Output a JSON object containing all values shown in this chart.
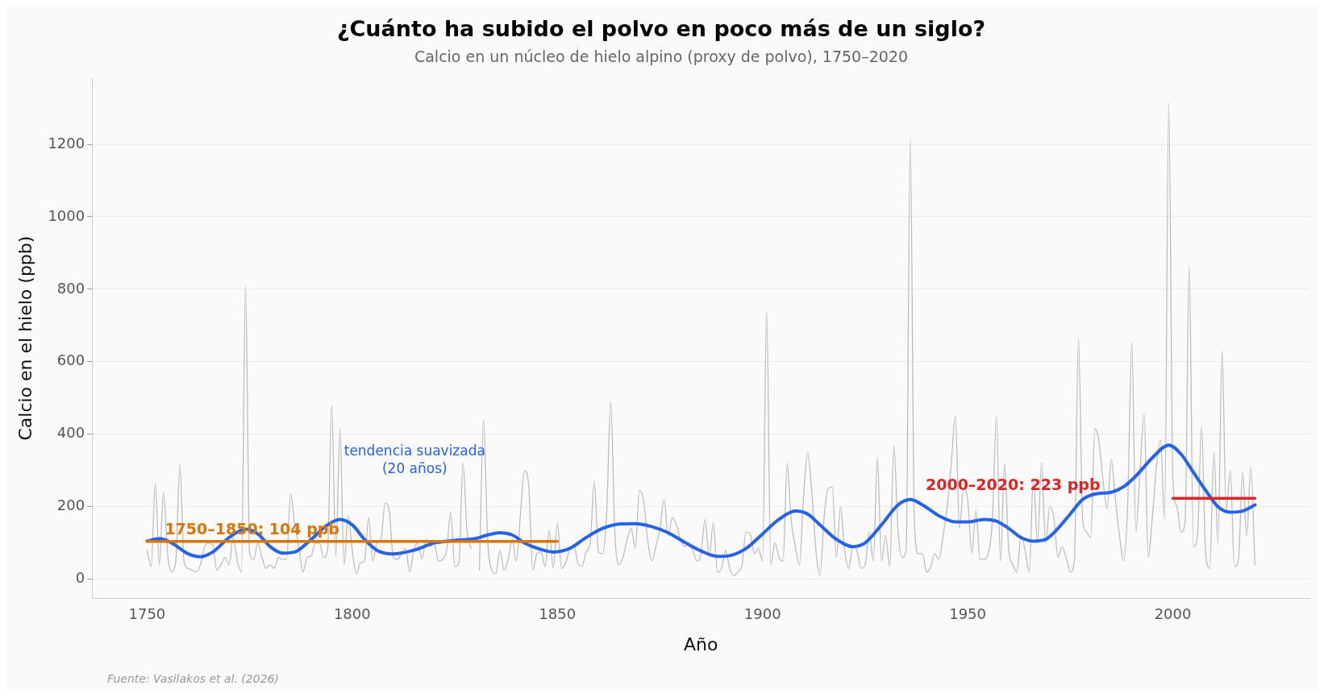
{
  "chart_data": {
    "type": "line",
    "title": "¿Cuánto ha subido el polvo en poco más de un siglo?",
    "subtitle": "Calcio en un núcleo de hielo alpino (proxy de polvo), 1750–2020",
    "xlabel": "Año",
    "ylabel": "Calcio en el hielo (ppb)",
    "annotations": [
      "Fuente: Vasilakos et al. (2026)"
    ],
    "xlim": [
      1736.6,
      2033.3
    ],
    "xticks": [
      1750,
      1800,
      1850,
      1900,
      1950,
      2000
    ],
    "ylim": [
      -52,
      1382
    ],
    "yticks": [
      0,
      200,
      400,
      600,
      800,
      1000,
      1200
    ],
    "grid": "y",
    "legend": false,
    "marker": "none",
    "series": [
      {
        "color": "#bdbdbd",
        "x": [
          1750,
          1751,
          1752,
          1753,
          1754,
          1755,
          1756,
          1757,
          1758,
          1759,
          1760,
          1761,
          1762,
          1763,
          1764,
          1765,
          1766,
          1767,
          1768,
          1769,
          1770,
          1771,
          1772,
          1773,
          1774,
          1775,
          1776,
          1777,
          1778,
          1779,
          1780,
          1781,
          1782,
          1783,
          1784,
          1785,
          1786,
          1787,
          1788,
          1789,
          1790,
          1791,
          1792,
          1793,
          1794,
          1795,
          1796,
          1797,
          1798,
          1799,
          1800,
          1801,
          1802,
          1803,
          1804,
          1805,
          1806,
          1807,
          1808,
          1809,
          1810,
          1811,
          1812,
          1813,
          1814,
          1815,
          1816,
          1817,
          1818,
          1819,
          1820,
          1821,
          1822,
          1823,
          1824,
          1825,
          1826,
          1827,
          1828,
          1829,
          1830,
          1831,
          1832,
          1833,
          1834,
          1835,
          1836,
          1837,
          1838,
          1839,
          1840,
          1841,
          1842,
          1843,
          1844,
          1845,
          1846,
          1847,
          1848,
          1849,
          1850,
          1851,
          1852,
          1853,
          1854,
          1855,
          1856,
          1857,
          1858,
          1859,
          1860,
          1861,
          1862,
          1863,
          1864,
          1865,
          1866,
          1867,
          1868,
          1869,
          1870,
          1871,
          1872,
          1873,
          1874,
          1875,
          1876,
          1877,
          1878,
          1879,
          1880,
          1881,
          1882,
          1883,
          1884,
          1885,
          1886,
          1887,
          1888,
          1889,
          1890,
          1891,
          1892,
          1893,
          1894,
          1895,
          1896,
          1897,
          1898,
          1899,
          1900,
          1901,
          1902,
          1903,
          1904,
          1905,
          1906,
          1907,
          1908,
          1909,
          1910,
          1911,
          1912,
          1913,
          1914,
          1915,
          1916,
          1917,
          1918,
          1919,
          1920,
          1921,
          1922,
          1923,
          1924,
          1925,
          1926,
          1927,
          1928,
          1929,
          1930,
          1931,
          1932,
          1933,
          1934,
          1935,
          1936,
          1937,
          1938,
          1939,
          1940,
          1941,
          1942,
          1943,
          1944,
          1945,
          1946,
          1947,
          1948,
          1949,
          1950,
          1951,
          1952,
          1953,
          1954,
          1955,
          1956,
          1957,
          1958,
          1959,
          1960,
          1961,
          1962,
          1963,
          1964,
          1965,
          1966,
          1967,
          1968,
          1969,
          1970,
          1971,
          1972,
          1973,
          1974,
          1975,
          1976,
          1977,
          1978,
          1979,
          1980,
          1981,
          1982,
          1983,
          1984,
          1985,
          1986,
          1987,
          1988,
          1989,
          1990,
          1991,
          1992,
          1993,
          1994,
          1995,
          1996,
          1997,
          1998,
          1999,
          2000,
          2001,
          2002,
          2003,
          2004,
          2005,
          2006,
          2007,
          2008,
          2009,
          2010,
          2011,
          2012,
          2013,
          2014,
          2015,
          2016,
          2017,
          2018,
          2019,
          2020
        ],
        "values": [
          80,
          35,
          265,
          40,
          240,
          70,
          20,
          50,
          315,
          50,
          30,
          25,
          20,
          40,
          90,
          100,
          95,
          25,
          40,
          60,
          40,
          115,
          50,
          20,
          810,
          70,
          55,
          100,
          60,
          30,
          40,
          30,
          60,
          55,
          55,
          235,
          150,
          90,
          20,
          60,
          65,
          100,
          100,
          60,
          80,
          480,
          60,
          415,
          40,
          175,
          80,
          15,
          45,
          50,
          170,
          50,
          100,
          110,
          210,
          190,
          60,
          55,
          70,
          85,
          20,
          80,
          100,
          55,
          110,
          90,
          100,
          50,
          55,
          80,
          185,
          35,
          45,
          320,
          130,
          85,
          null,
          25,
          440,
          110,
          25,
          15,
          80,
          25,
          55,
          110,
          50,
          180,
          300,
          260,
          25,
          70,
          75,
          35,
          135,
          30,
          155,
          30,
          45,
          80,
          95,
          45,
          35,
          75,
          100,
          270,
          75,
          70,
          180,
          490,
          130,
          40,
          60,
          110,
          140,
          85,
          245,
          220,
          110,
          50,
          90,
          140,
          220,
          120,
          170,
          150,
          110,
          90,
          100,
          80,
          50,
          70,
          165,
          60,
          155,
          20,
          30,
          80,
          30,
          10,
          20,
          40,
          130,
          125,
          70,
          85,
          50,
          740,
          40,
          100,
          60,
          50,
          320,
          160,
          90,
          40,
          230,
          350,
          240,
          80,
          10,
          170,
          250,
          255,
          60,
          200,
          80,
          30,
          90,
          80,
          30,
          40,
          130,
          50,
          335,
          50,
          120,
          35,
          370,
          140,
          60,
          80,
          1215,
          160,
          70,
          70,
          20,
          35,
          70,
          55,
          120,
          200,
          320,
          450,
          140,
          250,
          220,
          70,
          190,
          55,
          55,
          70,
          160,
          450,
          50,
          320,
          80,
          40,
          20,
          120,
          80,
          20,
          280,
          100,
          320,
          100,
          200,
          170,
          60,
          90,
          60,
          20,
          50,
          665,
          170,
          130,
          115,
          415,
          380,
          270,
          195,
          330,
          220,
          120,
          50,
          210,
          655,
          130,
          300,
          455,
          60,
          170,
          310,
          385,
          165,
          1315,
          280,
          200,
          130,
          160,
          865,
          90,
          120,
          420,
          70,
          30,
          350,
          100,
          630,
          190,
          300,
          35,
          55,
          295,
          120,
          310,
          40
        ]
      },
      {
        "name": "tendencia suavizada (20 años)",
        "color": "#2563eb",
        "x": [
          1750,
          1753,
          1756,
          1760,
          1763,
          1766,
          1770,
          1774,
          1777,
          1780,
          1783,
          1786,
          1790,
          1794,
          1797,
          1800,
          1803,
          1806,
          1810,
          1815,
          1820,
          1825,
          1830,
          1833,
          1836,
          1839,
          1842,
          1846,
          1849,
          1853,
          1857,
          1861,
          1865,
          1869,
          1873,
          1877,
          1881,
          1885,
          1889,
          1892,
          1896,
          1900,
          1904,
          1908,
          1911,
          1914,
          1918,
          1922,
          1925,
          1929,
          1933,
          1936,
          1939,
          1943,
          1947,
          1950,
          1954,
          1957,
          1960,
          1963,
          1966,
          1969,
          1972,
          1975,
          1978,
          1981,
          1985,
          1988,
          1991,
          1995,
          1999,
          2002,
          2005,
          2008,
          2011,
          2014,
          2017,
          2020
        ],
        "values": [
          105,
          112,
          100,
          70,
          62,
          75,
          115,
          138,
          125,
          90,
          72,
          75,
          110,
          150,
          165,
          150,
          110,
          80,
          70,
          80,
          100,
          107,
          112,
          122,
          128,
          122,
          100,
          82,
          75,
          85,
          115,
          140,
          152,
          153,
          145,
          128,
          102,
          78,
          63,
          65,
          85,
          125,
          165,
          188,
          180,
          150,
          110,
          90,
          100,
          150,
          205,
          220,
          205,
          175,
          158,
          158,
          165,
          160,
          140,
          115,
          105,
          110,
          140,
          180,
          220,
          235,
          240,
          255,
          285,
          335,
          370,
          345,
          295,
          245,
          200,
          185,
          188,
          205
        ]
      },
      {
        "name": "1750–1850: 104 ppb",
        "color": "#d97706",
        "x": [
          1750,
          1850
        ],
        "values": [
          104,
          104
        ]
      },
      {
        "name": "2000–2020: 223 ppb",
        "color": "#dc2626",
        "x": [
          2000,
          2020
        ],
        "values": [
          223,
          223
        ]
      }
    ]
  }
}
